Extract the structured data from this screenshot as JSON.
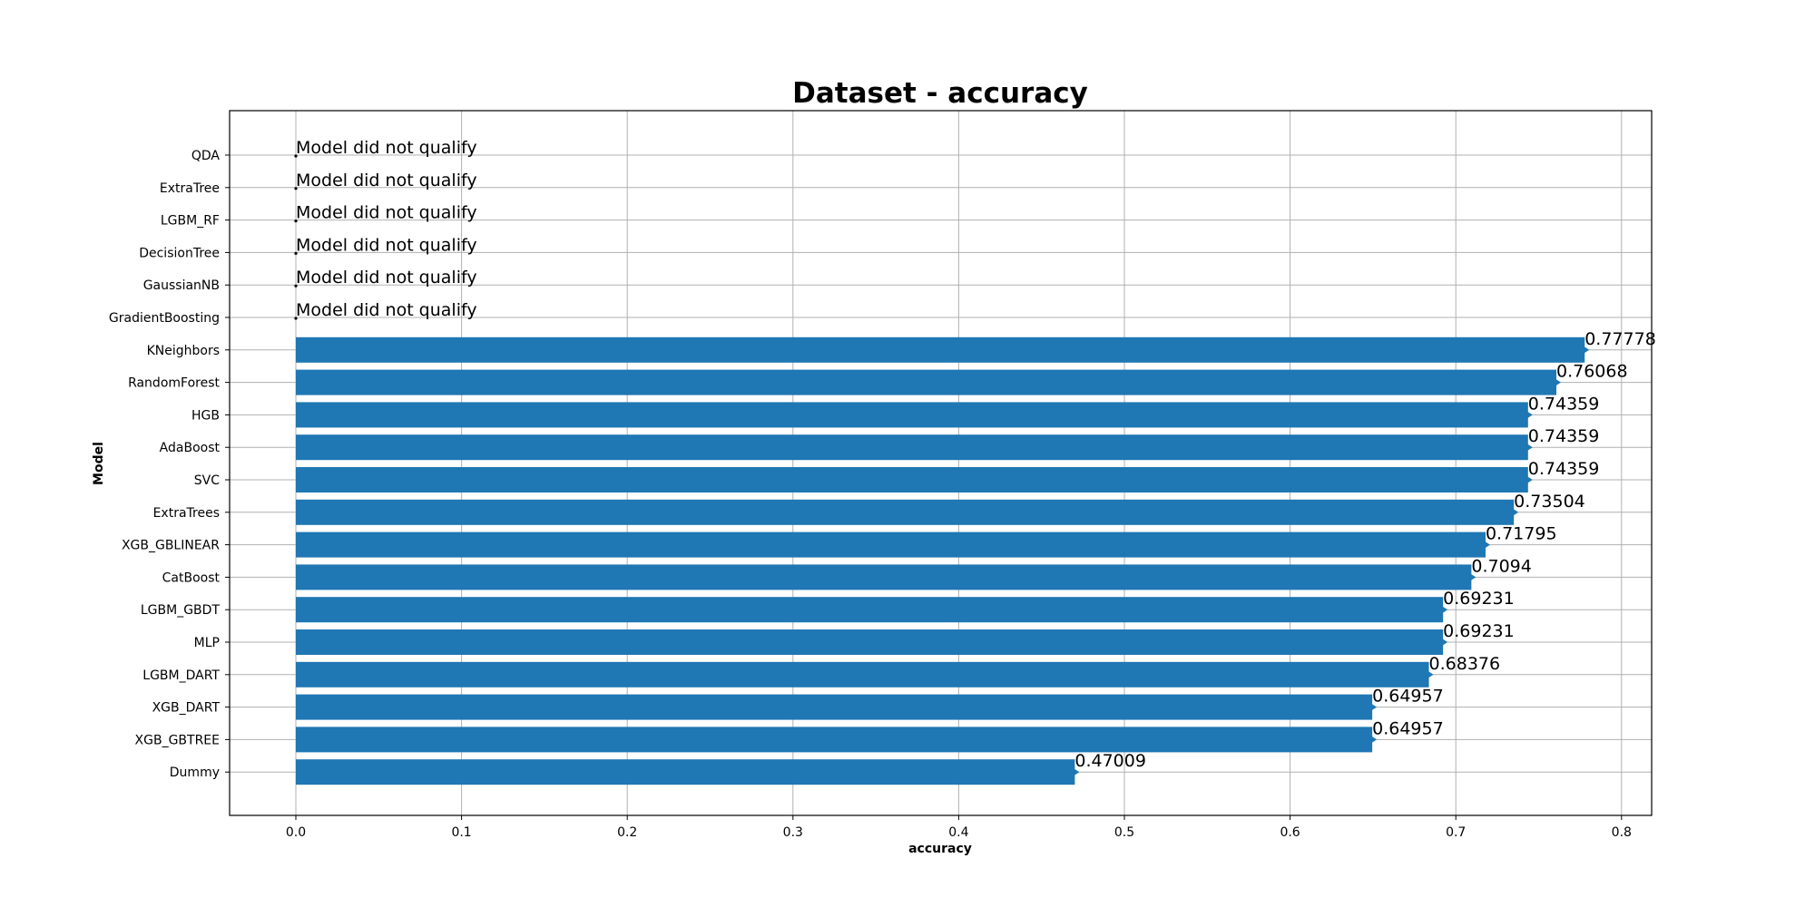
{
  "chart_data": {
    "type": "bar",
    "orientation": "horizontal",
    "title": "Dataset - accuracy",
    "xlabel": "accuracy",
    "ylabel": "Model",
    "xlim": [
      -0.04,
      0.817
    ],
    "x_ticks": [
      "0.0",
      "0.1",
      "0.2",
      "0.3",
      "0.4",
      "0.5",
      "0.6",
      "0.7",
      "0.8"
    ],
    "grid": true,
    "bar_color": "#1f77b4",
    "categories": [
      "QDA",
      "ExtraTree",
      "LGBM_RF",
      "DecisionTree",
      "GaussianNB",
      "GradientBoosting",
      "KNeighbors",
      "RandomForest",
      "HGB",
      "AdaBoost",
      "SVC",
      "ExtraTrees",
      "XGB_GBLINEAR",
      "CatBoost",
      "LGBM_GBDT",
      "MLP",
      "LGBM_DART",
      "XGB_DART",
      "XGB_GBTREE",
      "Dummy"
    ],
    "values": [
      null,
      null,
      null,
      null,
      null,
      null,
      0.77778,
      0.76068,
      0.74359,
      0.74359,
      0.74359,
      0.73504,
      0.71795,
      0.7094,
      0.69231,
      0.69231,
      0.68376,
      0.64957,
      0.64957,
      0.47009
    ],
    "labels": [
      "Model did not qualify",
      "Model did not qualify",
      "Model did not qualify",
      "Model did not qualify",
      "Model did not qualify",
      "Model did not qualify",
      "0.77778",
      "0.76068",
      "0.74359",
      "0.74359",
      "0.74359",
      "0.73504",
      "0.71795",
      "0.7094",
      "0.69231",
      "0.69231",
      "0.68376",
      "0.64957",
      "0.64957",
      "0.47009"
    ]
  }
}
